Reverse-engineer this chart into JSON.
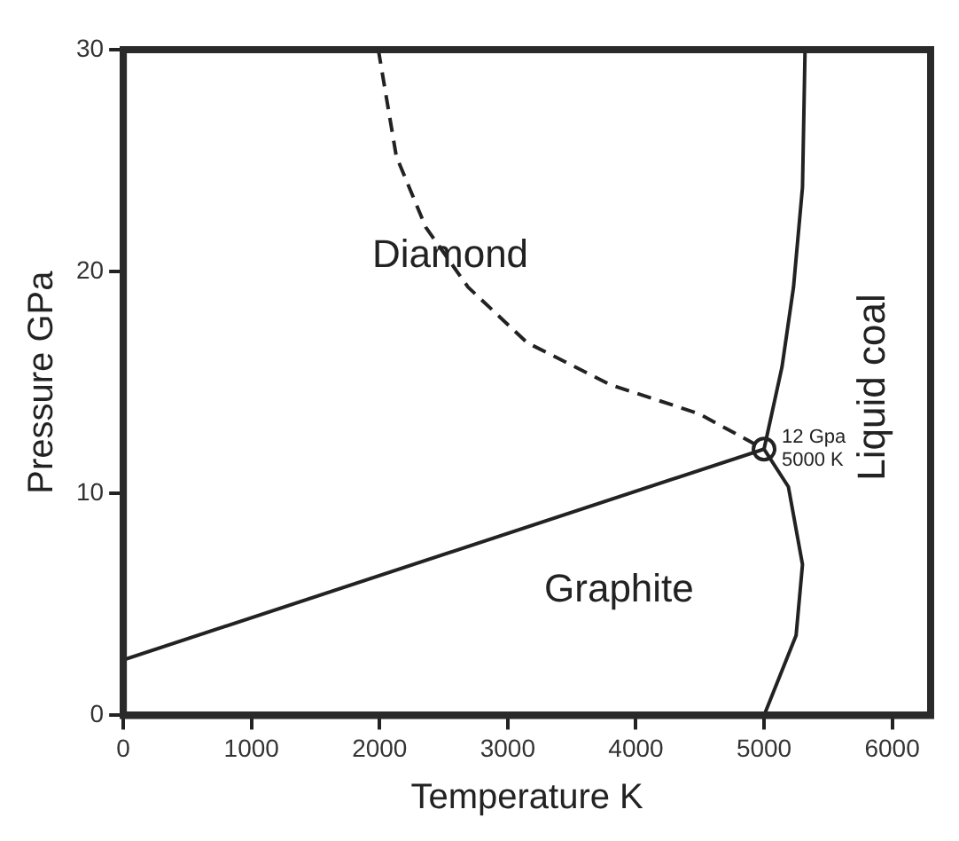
{
  "chart_data": {
    "type": "line",
    "xlabel": "Temperature K",
    "ylabel": "Pressure GPa",
    "xlim": [
      0,
      6300
    ],
    "ylim": [
      0,
      30
    ],
    "xticks": [
      0,
      1000,
      2000,
      3000,
      4000,
      5000,
      6000
    ],
    "yticks": [
      0,
      10,
      20,
      30
    ],
    "grid": false,
    "series": [
      {
        "color": "#222222",
        "line_style": "solid",
        "marker": "none",
        "x": [
          0,
          5000
        ],
        "values": [
          2.5,
          12
        ]
      },
      {
        "color": "#222222",
        "line_style": "dashed",
        "marker": "none",
        "x": [
          1990,
          2130,
          2360,
          2690,
          3150,
          3800,
          4490,
          5000
        ],
        "values": [
          30,
          25.2,
          22,
          19.3,
          16.8,
          14.9,
          13.6,
          12
        ]
      },
      {
        "color": "#222222",
        "line_style": "solid",
        "marker": "none",
        "x": [
          5320,
          5300,
          5230,
          5140,
          5000
        ],
        "values": [
          30,
          23.8,
          19.3,
          15.7,
          12
        ]
      },
      {
        "color": "#222222",
        "line_style": "solid",
        "marker": "none",
        "x": [
          5000,
          5190,
          5300,
          5250,
          5000
        ],
        "values": [
          12,
          10.3,
          6.8,
          3.6,
          0
        ]
      },
      {
        "type": "scatter",
        "color": "#222222",
        "marker": "circle",
        "x": [
          5000
        ],
        "values": [
          12
        ]
      }
    ],
    "annotations": [
      "Diamond",
      "Graphite",
      "Liquid coal",
      {
        "text": "12 Gpa\n5000 K",
        "x": 5000,
        "y": 12
      }
    ]
  }
}
